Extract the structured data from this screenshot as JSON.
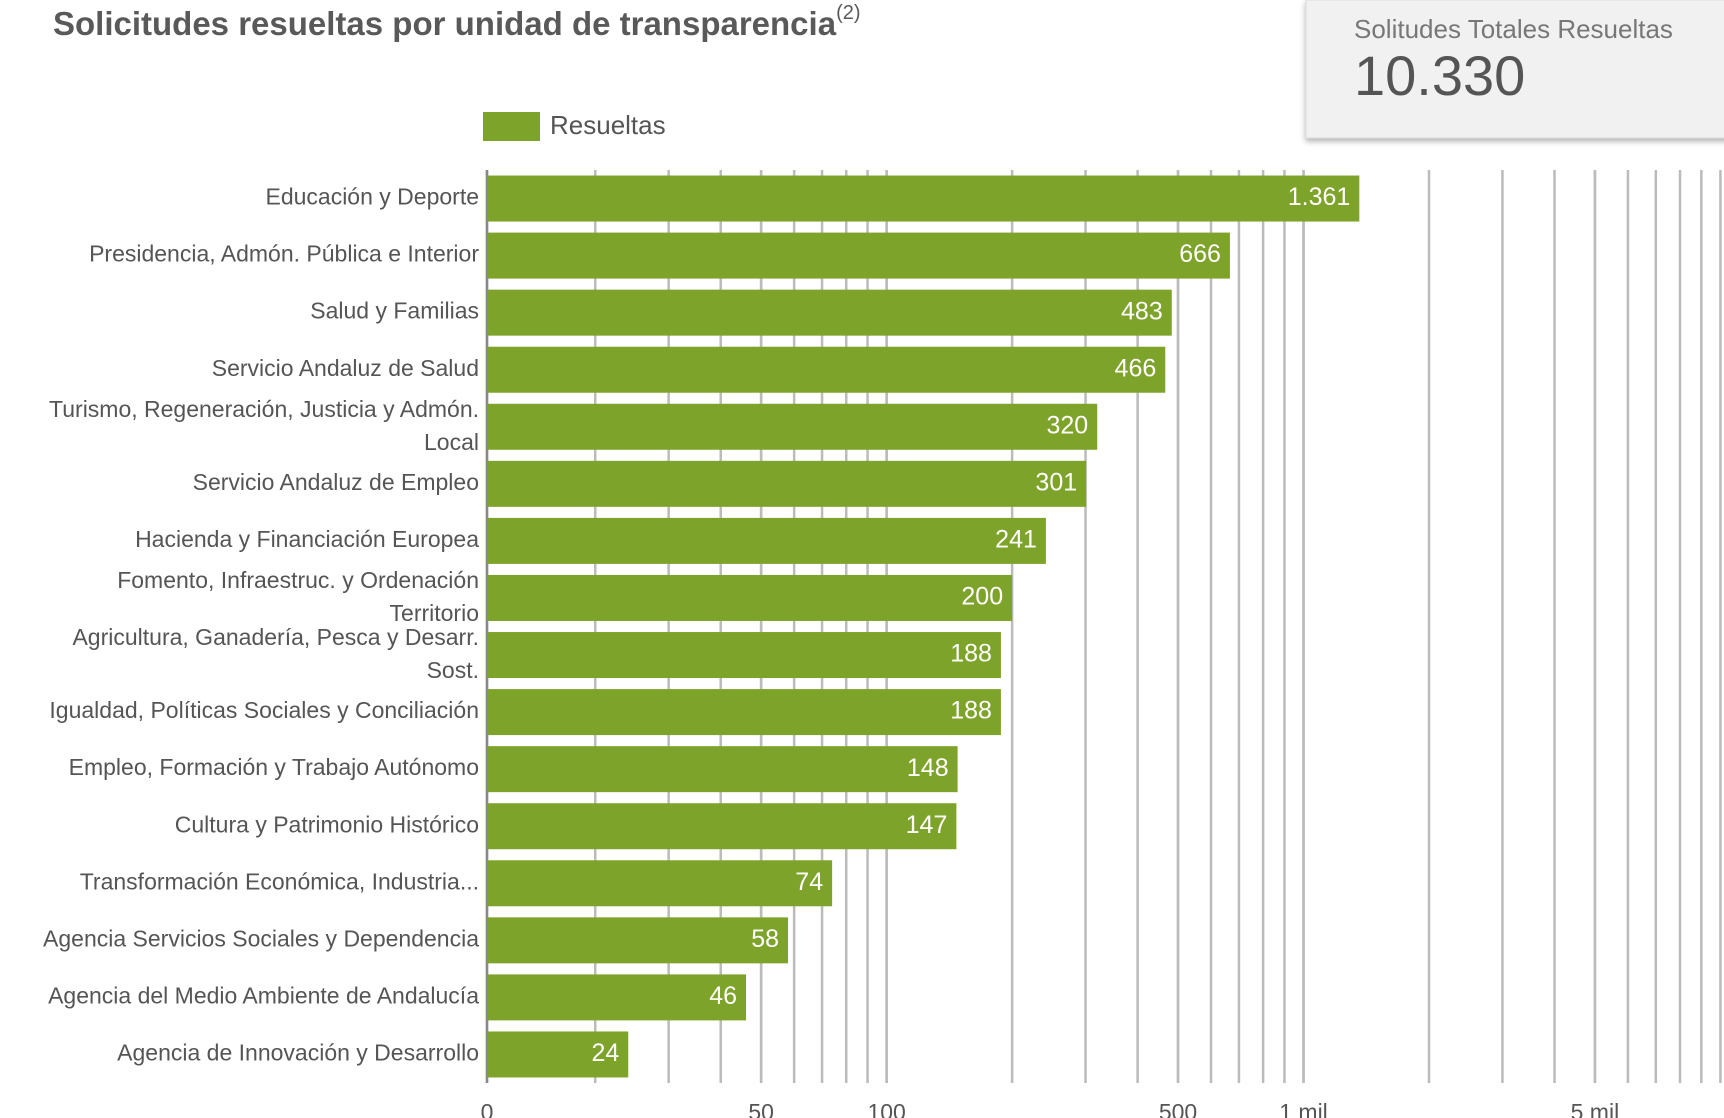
{
  "chart_data": {
    "type": "bar",
    "orientation": "horizontal",
    "title": "Solicitudes resueltas por unidad de transparencia",
    "title_note": "(2)",
    "categories": [
      "Educación y Deporte",
      "Presidencia, Admón. Pública e Interior",
      "Salud y Familias",
      "Servicio Andaluz de Salud",
      "Turismo, Regeneración, Justicia y Admón. Local",
      "Servicio Andaluz de Empleo",
      "Hacienda y Financiación Europea",
      "Fomento, Infraestruc. y Ordenación Territorio",
      "Agricultura, Ganadería, Pesca y Desarr. Sost.",
      "Igualdad, Políticas Sociales y Conciliación",
      "Empleo, Formación y Trabajo Autónomo",
      "Cultura y Patrimonio Histórico",
      "Transformación Económica, Industria...",
      "Agencia Servicios Sociales y Dependencia",
      "Agencia del Medio Ambiente de Andalucía",
      "Agencia de Innovación y Desarrollo"
    ],
    "series": [
      {
        "name": "Resueltas",
        "color": "#7ea32b",
        "values": [
          1361,
          666,
          483,
          466,
          320,
          301,
          241,
          200,
          188,
          188,
          148,
          147,
          74,
          58,
          46,
          24
        ],
        "value_labels": [
          "1.361",
          "666",
          "483",
          "466",
          "320",
          "301",
          "241",
          "200",
          "188",
          "188",
          "148",
          "147",
          "74",
          "58",
          "46",
          "24"
        ]
      }
    ],
    "xscale": "log",
    "xlim": [
      11,
      10200
    ],
    "xticks": [
      0,
      50,
      100,
      500,
      {
        "value": 1000,
        "label": "1 mil"
      },
      {
        "value": 5000,
        "label": "5 mil"
      }
    ],
    "grid": true,
    "legend": "top"
  },
  "scorecard": {
    "label": "Solitudes Totales Resueltas",
    "value": "10.330"
  }
}
